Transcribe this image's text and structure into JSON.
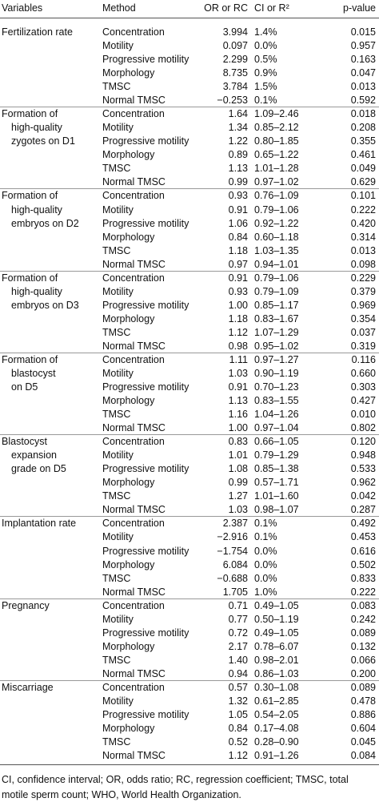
{
  "table": {
    "header": [
      "Variables",
      "Method",
      "OR or RC",
      "CI or R²",
      "p-value"
    ],
    "groups": [
      {
        "variable": [
          "Fertilization rate"
        ],
        "rows": [
          [
            "Concentration",
            "3.994",
            "1.4%",
            "0.015"
          ],
          [
            "Motility",
            "0.097",
            "0.0%",
            "0.957"
          ],
          [
            "Progressive motility",
            "2.299",
            "0.5%",
            "0.163"
          ],
          [
            "Morphology",
            "8.735",
            "0.9%",
            "0.047"
          ],
          [
            "TMSC",
            "3.784",
            "1.5%",
            "0.013"
          ],
          [
            "Normal TMSC",
            "−0.253",
            "0.1%",
            "0.592"
          ]
        ]
      },
      {
        "variable": [
          "Formation of",
          "high-quality",
          "zygotes on D1"
        ],
        "rows": [
          [
            "Concentration",
            "1.64",
            "1.09–2.46",
            "0.018"
          ],
          [
            "Motility",
            "1.34",
            "0.85–2.12",
            "0.208"
          ],
          [
            "Progressive motility",
            "1.22",
            "0.80–1.85",
            "0.355"
          ],
          [
            "Morphology",
            "0.89",
            "0.65–1.22",
            "0.461"
          ],
          [
            "TMSC",
            "1.13",
            "1.01–1.28",
            "0.049"
          ],
          [
            "Normal TMSC",
            "0.99",
            "0.97–1.02",
            "0.629"
          ]
        ]
      },
      {
        "variable": [
          "Formation of",
          "high-quality",
          "embryos on D2"
        ],
        "rows": [
          [
            "Concentration",
            "0.93",
            "0.76–1.09",
            "0.101"
          ],
          [
            "Motility",
            "0.91",
            "0.79–1.06",
            "0.222"
          ],
          [
            "Progressive motility",
            "1.06",
            "0.92–1.22",
            "0.420"
          ],
          [
            "Morphology",
            "0.84",
            "0.60–1.18",
            "0.314"
          ],
          [
            "TMSC",
            "1.18",
            "1.03–1.35",
            "0.013"
          ],
          [
            "Normal TMSC",
            "0.97",
            "0.94–1.01",
            "0.098"
          ]
        ]
      },
      {
        "variable": [
          "Formation of",
          "high-quality",
          "embryos on D3"
        ],
        "rows": [
          [
            "Concentration",
            "0.91",
            "0.79–1.06",
            "0.229"
          ],
          [
            "Motility",
            "0.93",
            "0.79–1.09",
            "0.379"
          ],
          [
            "Progressive motility",
            "1.00",
            "0.85–1.17",
            "0.969"
          ],
          [
            "Morphology",
            "1.18",
            "0.83–1.67",
            "0.354"
          ],
          [
            "TMSC",
            "1.12",
            "1.07–1.29",
            "0.037"
          ],
          [
            "Normal TMSC",
            "0.98",
            "0.95–1.02",
            "0.319"
          ]
        ]
      },
      {
        "variable": [
          "Formation of",
          "blastocyst",
          "on D5"
        ],
        "rows": [
          [
            "Concentration",
            "1.11",
            "0.97–1.27",
            "0.116"
          ],
          [
            "Motility",
            "1.03",
            "0.90–1.19",
            "0.660"
          ],
          [
            "Progressive motility",
            "0.91",
            "0.70–1.23",
            "0.303"
          ],
          [
            "Morphology",
            "1.13",
            "0.83–1.55",
            "0.427"
          ],
          [
            "TMSC",
            "1.16",
            "1.04–1.26",
            "0.010"
          ],
          [
            "Normal TMSC",
            "1.00",
            "0.97–1.04",
            "0.802"
          ]
        ]
      },
      {
        "variable": [
          "Blastocyst",
          "expansion",
          "grade on D5"
        ],
        "rows": [
          [
            "Concentration",
            "0.83",
            "0.66–1.05",
            "0.120"
          ],
          [
            "Motility",
            "1.01",
            "0.79–1.29",
            "0.948"
          ],
          [
            "Progressive motility",
            "1.08",
            "0.85–1.38",
            "0.533"
          ],
          [
            "Morphology",
            "0.99",
            "0.57–1.71",
            "0.962"
          ],
          [
            "TMSC",
            "1.27",
            "1.01–1.60",
            "0.042"
          ],
          [
            "Normal TMSC",
            "1.03",
            "0.98–1.07",
            "0.287"
          ]
        ]
      },
      {
        "variable": [
          "Implantation rate"
        ],
        "rows": [
          [
            "Concentration",
            "2.387",
            "0.1%",
            "0.492"
          ],
          [
            "Motility",
            "−2.916",
            "0.1%",
            "0.453"
          ],
          [
            "Progressive motility",
            "−1.754",
            "0.0%",
            "0.616"
          ],
          [
            "Morphology",
            "6.084",
            "0.0%",
            "0.502"
          ],
          [
            "TMSC",
            "−0.688",
            "0.0%",
            "0.833"
          ],
          [
            "Normal TMSC",
            "1.705",
            "1.0%",
            "0.222"
          ]
        ]
      },
      {
        "variable": [
          "Pregnancy"
        ],
        "rows": [
          [
            "Concentration",
            "0.71",
            "0.49–1.05",
            "0.083"
          ],
          [
            "Motility",
            "0.77",
            "0.50–1.19",
            "0.242"
          ],
          [
            "Progressive motility",
            "0.72",
            "0.49–1.05",
            "0.089"
          ],
          [
            "Morphology",
            "2.17",
            "0.78–6.07",
            "0.132"
          ],
          [
            "TMSC",
            "1.40",
            "0.98–2.01",
            "0.066"
          ],
          [
            "Normal TMSC",
            "0.94",
            "0.86–1.03",
            "0.200"
          ]
        ]
      },
      {
        "variable": [
          "Miscarriage"
        ],
        "rows": [
          [
            "Concentration",
            "0.57",
            "0.30–1.08",
            "0.089"
          ],
          [
            "Motility",
            "1.32",
            "0.61–2.85",
            "0.478"
          ],
          [
            "Progressive motility",
            "1.05",
            "0.54–2.05",
            "0.886"
          ],
          [
            "Morphology",
            "0.84",
            "0.17–4.08",
            "0.604"
          ],
          [
            "TMSC",
            "0.52",
            "0.28–0.90",
            "0.045"
          ],
          [
            "Normal TMSC",
            "1.12",
            "0.91–1.26",
            "0.084"
          ]
        ]
      }
    ],
    "footnote": "CI, confidence interval; OR, odds ratio; RC, regression coefficient; TMSC, total motile sperm count; WHO, World Health Organization."
  }
}
